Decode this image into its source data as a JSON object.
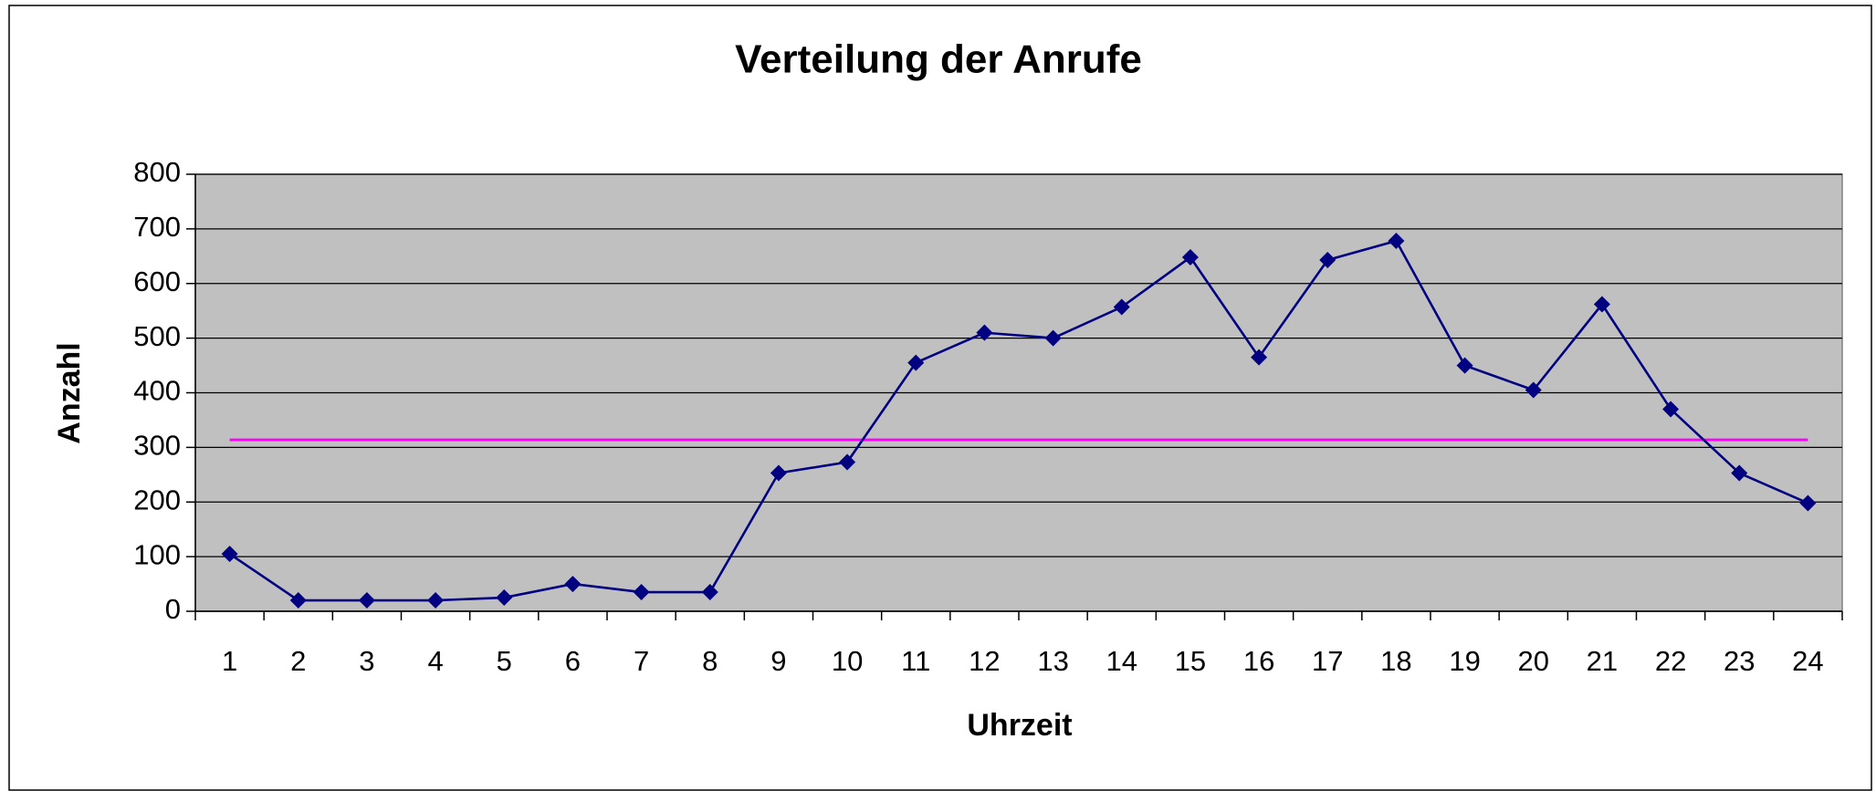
{
  "chart_data": {
    "type": "line",
    "title": "Verteilung der Anrufe",
    "x_label": "Uhrzeit",
    "y_label": "Anzahl",
    "categories": [
      "1",
      "2",
      "3",
      "4",
      "5",
      "6",
      "7",
      "8",
      "9",
      "10",
      "11",
      "12",
      "13",
      "14",
      "15",
      "16",
      "17",
      "18",
      "19",
      "20",
      "21",
      "22",
      "23",
      "24"
    ],
    "series": [
      {
        "color": "#000080",
        "values": [
          105,
          20,
          20,
          20,
          25,
          50,
          35,
          35,
          253,
          273,
          455,
          510,
          500,
          557,
          648,
          465,
          643,
          678,
          450,
          405,
          562,
          370,
          253,
          198
        ]
      }
    ],
    "reference_line": {
      "value": 313.75,
      "color": "#ff00ff"
    },
    "ylim": [
      0,
      800
    ],
    "yticks": [
      0,
      100,
      200,
      300,
      400,
      500,
      600,
      700,
      800
    ],
    "grid": true,
    "plot_background": "#c0c0c0"
  }
}
